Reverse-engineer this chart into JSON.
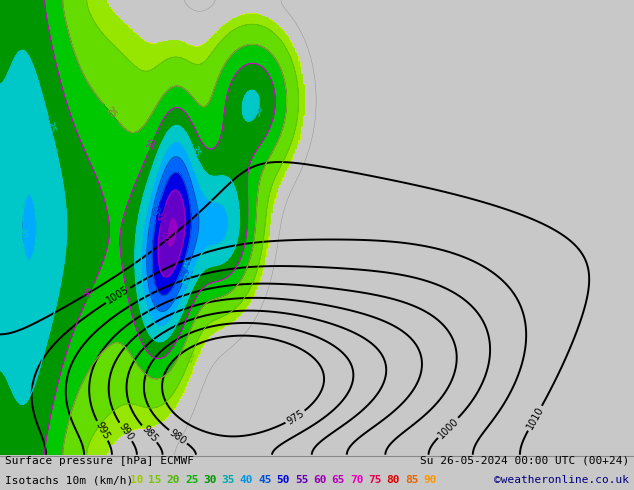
{
  "title_line1": "Surface pressure [hPa] ECMWF",
  "title_line2": "Isotachs 10m (km/h)",
  "date_str": "Su 26-05-2024 00:00 UTC (00+24)",
  "credit": "©weatheronline.co.uk",
  "isotach_values": [
    10,
    15,
    20,
    25,
    30,
    35,
    40,
    45,
    50,
    55,
    60,
    65,
    70,
    75,
    80,
    85,
    90
  ],
  "isotach_colors_legend": [
    "#a0c800",
    "#78c800",
    "#50b400",
    "#00b400",
    "#009600",
    "#00aaaa",
    "#0096e6",
    "#0050dc",
    "#0000dc",
    "#6400b4",
    "#9600b4",
    "#be00be",
    "#e600be",
    "#e60050",
    "#dc0000",
    "#e66400",
    "#ff9600"
  ],
  "bg_color": "#c8c8c8",
  "map_bg": "#d8d8d8",
  "text_color": "#000000",
  "credit_color": "#000080",
  "fig_width": 6.34,
  "fig_height": 4.9,
  "dpi": 100,
  "isobar_levels": [
    975,
    980,
    985,
    990,
    995,
    1000,
    1005,
    1010
  ],
  "isotach_contour_colors": {
    "cyan": "#00c8c8",
    "blue": "#0000dc",
    "purple": "#9600be",
    "magenta": "#dc00dc",
    "green": "#00aa00",
    "yellow_green": "#96dc00"
  }
}
